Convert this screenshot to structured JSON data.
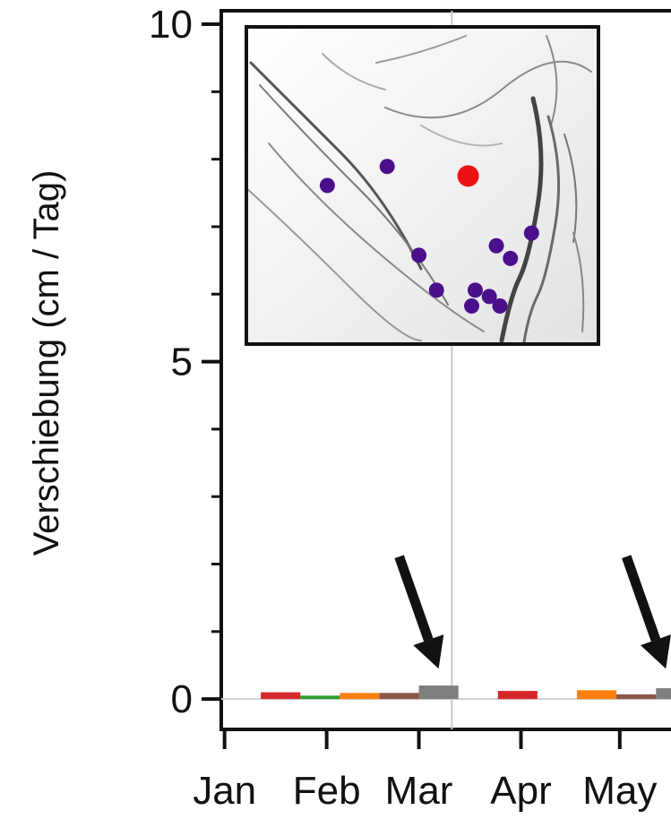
{
  "chart_data": {
    "type": "bar",
    "ylabel": "Verschiebung (cm / Tag)",
    "ylim": [
      -0.45,
      10.2
    ],
    "yticks": [
      {
        "value": 0,
        "label": "0"
      },
      {
        "value": 5,
        "label": "5"
      },
      {
        "value": 10,
        "label": "10"
      }
    ],
    "y_minor_ticks": [
      1,
      2,
      3,
      4,
      6,
      7,
      8,
      9
    ],
    "xaxis_scale": "days_from_jan_1",
    "xlim": [
      -1,
      141
    ],
    "xticks": [
      {
        "value": 0,
        "label": "Jan"
      },
      {
        "value": 31,
        "label": "Feb"
      },
      {
        "value": 59,
        "label": "Mar"
      },
      {
        "value": 90,
        "label": "Apr"
      },
      {
        "value": 120,
        "label": "May"
      }
    ],
    "vertical_line_at": 69,
    "grid": false,
    "bars": [
      {
        "start": 11,
        "end": 23,
        "value": 0.1,
        "color": "#d62728"
      },
      {
        "start": 23,
        "end": 35,
        "value": 0.05,
        "color": "#2ca02c"
      },
      {
        "start": 35,
        "end": 47,
        "value": 0.09,
        "color": "#ff7f0e"
      },
      {
        "start": 47,
        "end": 59,
        "value": 0.09,
        "color": "#8c564b"
      },
      {
        "start": 59,
        "end": 71,
        "value": 0.2,
        "color": "#7f7f7f"
      },
      {
        "start": 83,
        "end": 95,
        "value": 0.12,
        "color": "#d62728"
      },
      {
        "start": 107,
        "end": 119,
        "value": 0.13,
        "color": "#ff7f0e"
      },
      {
        "start": 119,
        "end": 131,
        "value": 0.07,
        "color": "#8c564b"
      },
      {
        "start": 131,
        "end": 143,
        "value": 0.16,
        "color": "#7f7f7f"
      }
    ],
    "arrows": [
      {
        "x": 65,
        "y": 0.45
      },
      {
        "x": 134,
        "y": 0.45
      }
    ],
    "inset_map": {
      "points": [
        {
          "x": 0.23,
          "y": 0.5,
          "color": "#4b0f8c"
        },
        {
          "x": 0.4,
          "y": 0.56,
          "color": "#4b0f8c"
        },
        {
          "x": 0.49,
          "y": 0.28,
          "color": "#4b0f8c"
        },
        {
          "x": 0.54,
          "y": 0.17,
          "color": "#4b0f8c"
        },
        {
          "x": 0.65,
          "y": 0.17,
          "color": "#4b0f8c"
        },
        {
          "x": 0.64,
          "y": 0.12,
          "color": "#4b0f8c"
        },
        {
          "x": 0.72,
          "y": 0.12,
          "color": "#4b0f8c"
        },
        {
          "x": 0.71,
          "y": 0.31,
          "color": "#4b0f8c"
        },
        {
          "x": 0.69,
          "y": 0.15,
          "color": "#4b0f8c"
        },
        {
          "x": 0.75,
          "y": 0.27,
          "color": "#4b0f8c"
        },
        {
          "x": 0.81,
          "y": 0.35,
          "color": "#4b0f8c"
        },
        {
          "x": 0.63,
          "y": 0.53,
          "color": "#ee1111"
        }
      ]
    }
  }
}
